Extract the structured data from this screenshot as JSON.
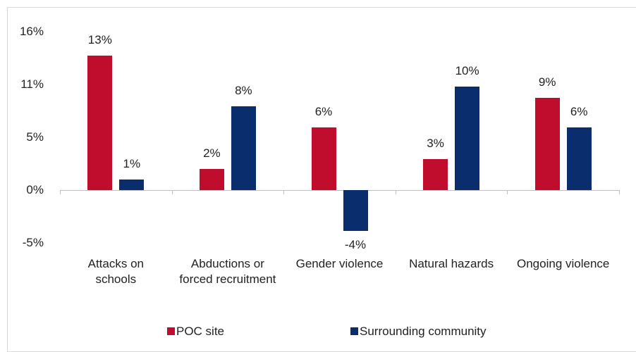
{
  "chart_data": {
    "type": "bar",
    "categories": [
      "Attacks on schools",
      "Abductions or forced recruitment",
      "Gender violence",
      "Natural hazards",
      "Ongoing violence"
    ],
    "series": [
      {
        "name": "POC site",
        "color": "#c00d2e",
        "values": [
          13.4,
          2.1,
          6.2,
          3.1,
          9.2
        ],
        "value_labels": [
          "13%",
          "2%",
          "6%",
          "3%",
          "9%"
        ]
      },
      {
        "name": "Surrounding community",
        "color": "#0a2d6e",
        "values": [
          1.05,
          8.3,
          -4.06,
          10.3,
          6.2
        ],
        "value_labels": [
          "1%",
          "8%",
          "-4%",
          "10%",
          "6%"
        ]
      }
    ],
    "ylim": [
      -5.25,
      15.75
    ],
    "yticks": [
      {
        "value": -5.25,
        "label": "-5%"
      },
      {
        "value": 0,
        "label": "0%"
      },
      {
        "value": 5.25,
        "label": "5%"
      },
      {
        "value": 10.5,
        "label": "11%"
      },
      {
        "value": 15.75,
        "label": "16%"
      }
    ],
    "legend": "bottom"
  }
}
